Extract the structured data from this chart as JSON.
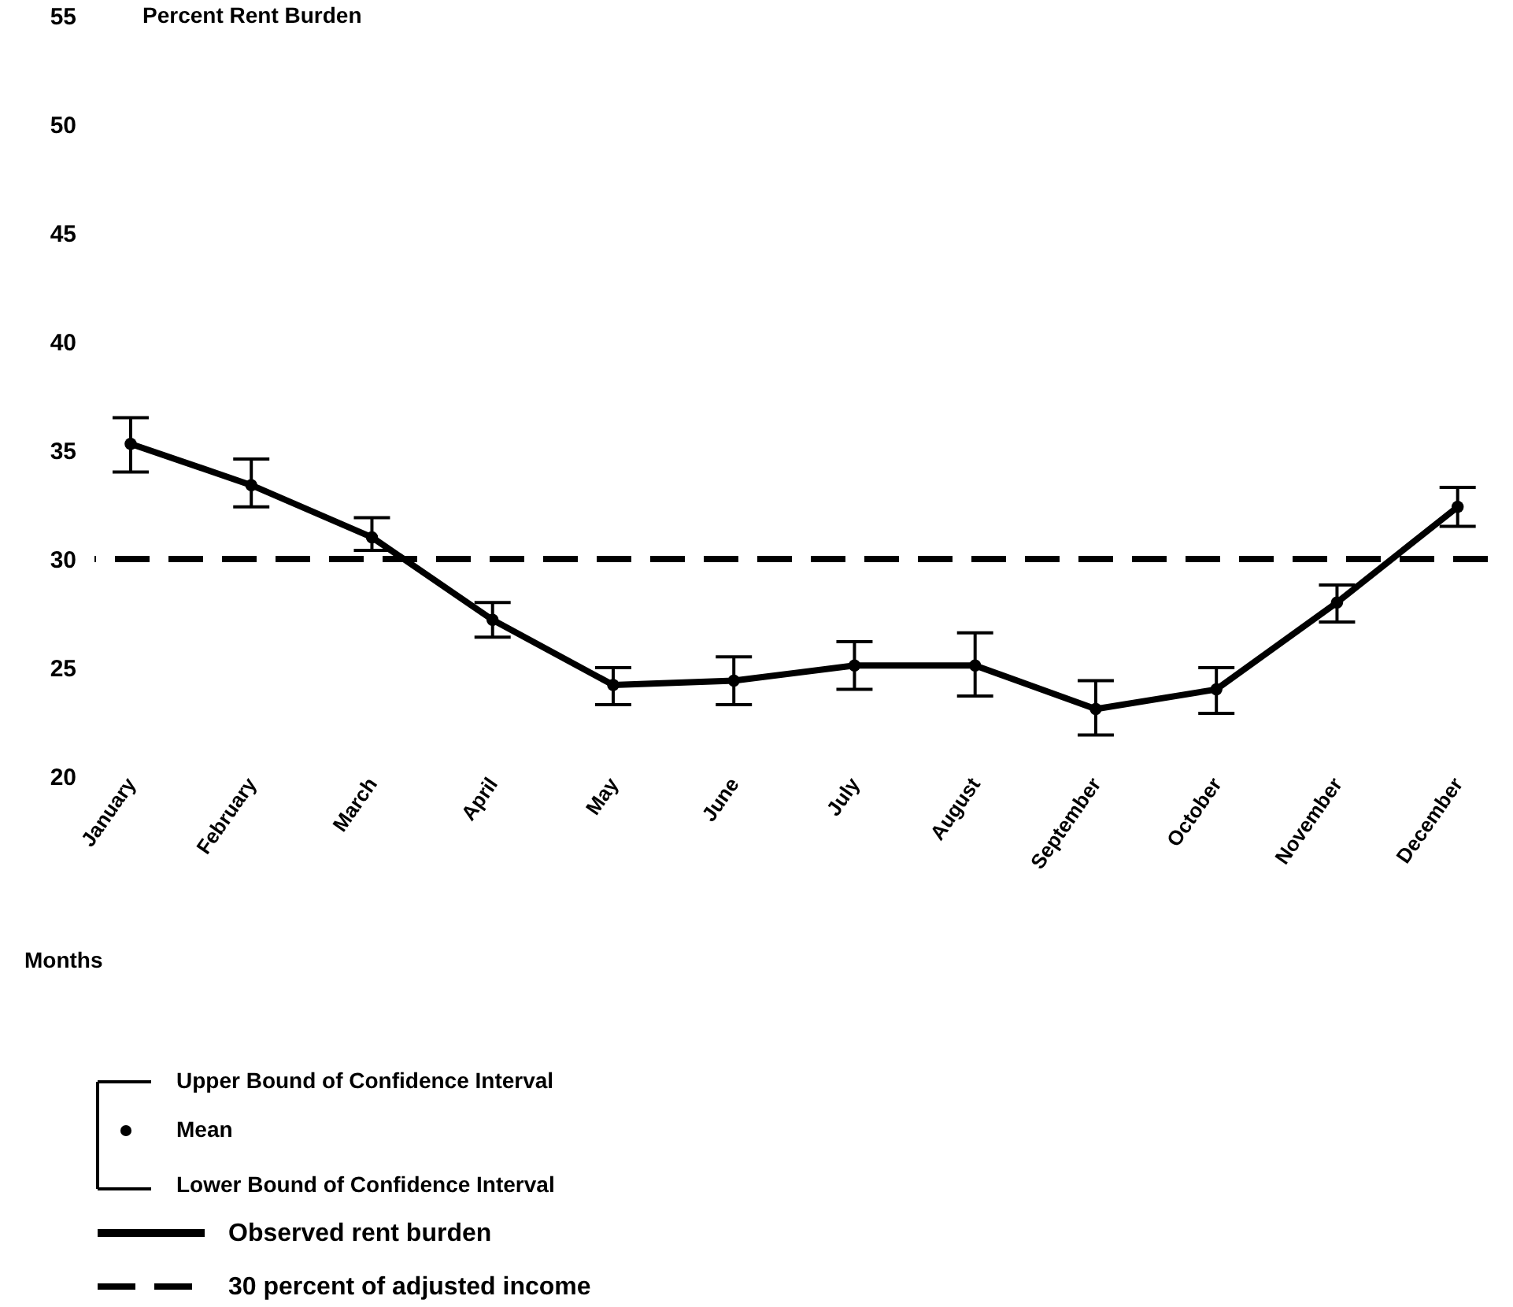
{
  "chart_data": {
    "type": "line",
    "ylabel": "Percent Rent Burden",
    "xlabel": "Months",
    "categories": [
      "January",
      "February",
      "March",
      "April",
      "May",
      "June",
      "July",
      "August",
      "September",
      "October",
      "November",
      "December"
    ],
    "series": [
      {
        "name": "Observed rent burden",
        "color": "#000000",
        "values": [
          35.3,
          33.4,
          31.0,
          27.2,
          24.2,
          24.4,
          25.1,
          25.1,
          23.1,
          24.0,
          28.0,
          32.4
        ],
        "errors": [
          [
            34.0,
            36.5
          ],
          [
            32.4,
            34.6
          ],
          [
            30.4,
            31.9
          ],
          [
            26.4,
            28.0
          ],
          [
            23.3,
            25.0
          ],
          [
            23.3,
            25.5
          ],
          [
            24.0,
            26.2
          ],
          [
            23.7,
            26.6
          ],
          [
            21.9,
            24.4
          ],
          [
            22.9,
            25.0
          ],
          [
            27.1,
            28.8
          ],
          [
            31.5,
            33.3
          ]
        ]
      }
    ],
    "ylim": [
      20,
      55
    ],
    "yticks": [
      20,
      25,
      30,
      35,
      40,
      45,
      50,
      55
    ],
    "ref_lines": [
      {
        "axis": "y",
        "value": 30,
        "label": "30 percent of adjusted income",
        "color": "#000000",
        "line_style": "dashed"
      }
    ],
    "annotations": [
      "Upper Bound of Confidence Interval",
      "Mean",
      "Lower Bound of Confidence Interval"
    ],
    "marker": "circle",
    "line_style": "solid",
    "grid": false,
    "legend": "bottom left"
  }
}
